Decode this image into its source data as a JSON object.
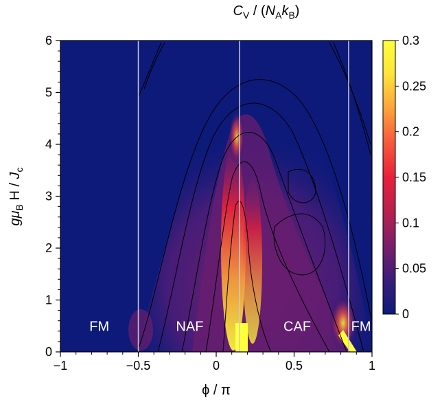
{
  "chart_data": {
    "type": "heatmap",
    "title": "C_V / (N_A k_B)",
    "title_parts": {
      "C": "C",
      "V": "V",
      "slash": " / (",
      "N": "N",
      "A": "A",
      "k": "k",
      "B": "B",
      "close": ")"
    },
    "xlabel": "ϕ / π",
    "ylabel_parts": {
      "g": "g",
      "mu": "μ",
      "B": "B",
      "H": " H / ",
      "J": "J",
      "c": "c"
    },
    "xlim": [
      -1,
      1
    ],
    "ylim": [
      0,
      6
    ],
    "x_ticks": [
      "−1",
      "−0.5",
      "0",
      "0.5",
      "1"
    ],
    "x_tick_values": [
      -1,
      -0.5,
      0,
      0.5,
      1
    ],
    "y_ticks": [
      "0",
      "1",
      "2",
      "3",
      "4",
      "5",
      "6"
    ],
    "y_tick_values": [
      0,
      1,
      2,
      3,
      4,
      5,
      6
    ],
    "colorbar": {
      "range": [
        0,
        0.3
      ],
      "ticks": [
        "0",
        "0.05",
        "0.1",
        "0.15",
        "0.2",
        "0.25",
        "0.3"
      ],
      "tick_values": [
        0,
        0.05,
        0.1,
        0.15,
        0.2,
        0.25,
        0.3
      ],
      "colormap": [
        "#0d1a7a",
        "#3a1d7a",
        "#7a1f6a",
        "#b8204e",
        "#e8203a",
        "#f8583a",
        "#fca23a",
        "#ffe23a",
        "#ffff3a"
      ]
    },
    "phase_boundaries_x": [
      -0.5,
      0.15,
      0.85
    ],
    "regions": [
      {
        "label": "FM",
        "x": -0.75,
        "y": 0.5
      },
      {
        "label": "NAF",
        "x": -0.17,
        "y": 0.5
      },
      {
        "label": "CAF",
        "x": 0.52,
        "y": 0.5
      },
      {
        "label": "FM",
        "x": 0.93,
        "y": 0.5
      }
    ],
    "background_color": "#0d1a7a"
  }
}
